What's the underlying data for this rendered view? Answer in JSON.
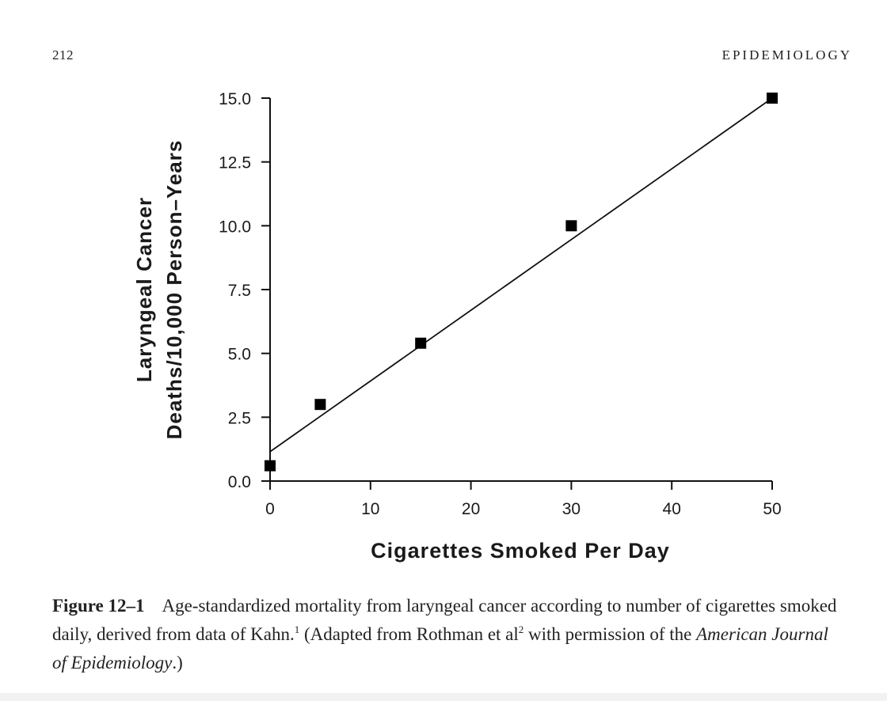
{
  "header": {
    "page_number": "212",
    "running_head": "EPIDEMIOLOGY"
  },
  "chart_data": {
    "type": "scatter",
    "xlabel": "Cigarettes Smoked Per Day",
    "ylabel_line1": "Laryngeal Cancer",
    "ylabel_line2": "Deaths/10,000 Person–Years",
    "xlim": [
      0,
      50
    ],
    "ylim": [
      0,
      15
    ],
    "xticks": [
      0,
      10,
      20,
      30,
      40,
      50
    ],
    "yticks": [
      "0.0",
      "2.5",
      "5.0",
      "7.5",
      "10.0",
      "12.5",
      "15.0"
    ],
    "points": [
      {
        "x": 0,
        "y": 0.6
      },
      {
        "x": 5,
        "y": 3.0
      },
      {
        "x": 15,
        "y": 5.4
      },
      {
        "x": 30,
        "y": 10.0
      },
      {
        "x": 50,
        "y": 15.0
      }
    ],
    "fit_line": {
      "x": [
        0,
        50
      ],
      "y": [
        1.15,
        15.0
      ]
    },
    "grid": false,
    "legend": "none"
  },
  "caption": {
    "label": "Figure 12–1",
    "text_part1": "Age-standardized mortality from laryngeal cancer according to number of cigarettes smoked daily, derived from data of Kahn.",
    "ref1": "1",
    "text_part2": " (Adapted from Rothman et al",
    "ref2": "2",
    "text_part3": " with permission of the ",
    "journal": "American Journal of Epidemiology",
    "text_part4": ".)"
  }
}
